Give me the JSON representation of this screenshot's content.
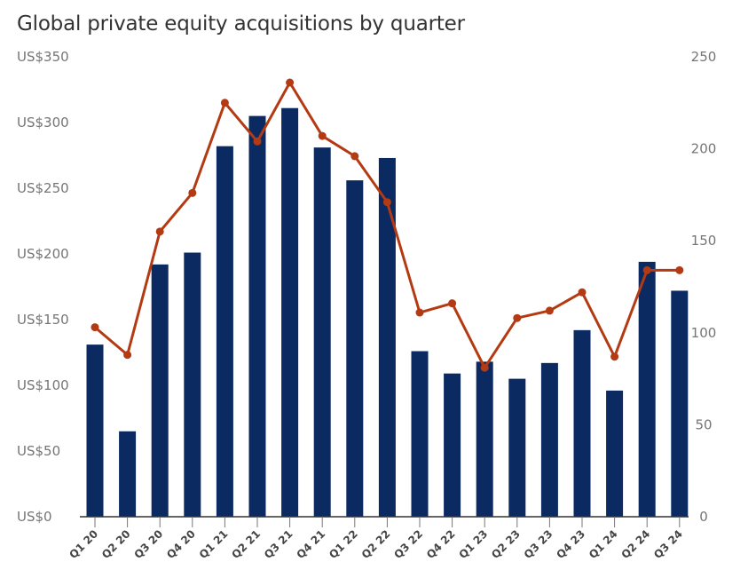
{
  "chart_data": {
    "type": "bar+line",
    "title": "Global private equity acquisitions by quarter",
    "categories": [
      "Q1 20",
      "Q2 20",
      "Q3 20",
      "Q4 20",
      "Q1 21",
      "Q2 21",
      "Q3 21",
      "Q4 21",
      "Q1 22",
      "Q2 22",
      "Q3 22",
      "Q4 22",
      "Q1 23",
      "Q2 23",
      "Q3 23",
      "Q4 23",
      "Q1 24",
      "Q2 24",
      "Q3 24"
    ],
    "series": [
      {
        "type": "bar",
        "axis": "left",
        "color": "#0b2a62",
        "values": [
          131,
          65,
          192,
          201,
          282,
          305,
          311,
          281,
          256,
          273,
          126,
          109,
          118,
          105,
          117,
          142,
          96,
          194,
          172
        ]
      },
      {
        "type": "line",
        "axis": "right",
        "color": "#b33a12",
        "values": [
          103,
          88,
          155,
          176,
          225,
          204,
          236,
          207,
          196,
          171,
          111,
          116,
          81,
          108,
          112,
          122,
          87,
          134,
          134
        ]
      }
    ],
    "left_axis": {
      "ylim": [
        0,
        350
      ],
      "ticks": [
        "US$0",
        "US$50",
        "US$100",
        "US$150",
        "US$200",
        "US$250",
        "US$300",
        "US$350"
      ]
    },
    "right_axis": {
      "ylim": [
        0,
        250
      ],
      "ticks": [
        "0",
        "50",
        "100",
        "150",
        "200",
        "250"
      ]
    },
    "grid": false,
    "legend": "none"
  }
}
